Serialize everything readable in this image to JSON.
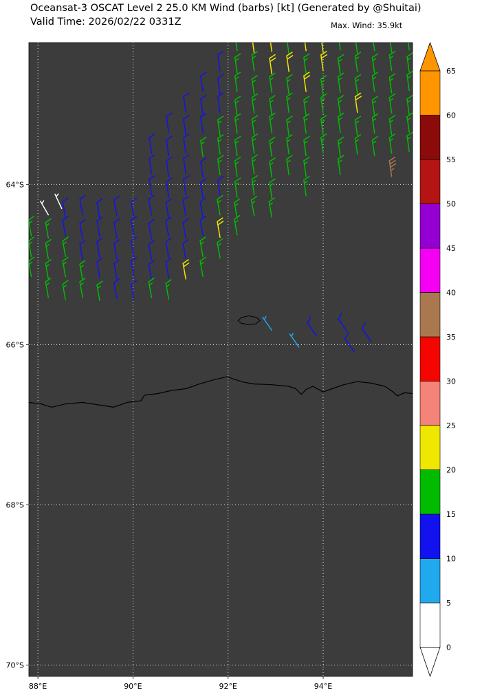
{
  "header": {
    "title": "Oceansat-3 OSCAT Level 2 25.0 KM Wind (barbs) [kt] (Generated by @Shuitai)",
    "valid_time": "Valid Time: 2026/02/22 0331Z",
    "max_wind": "Max. Wind: 35.9kt"
  },
  "chart_data": {
    "type": "scatter",
    "subtype": "wind_barbs",
    "units": "kt",
    "title": "Oceansat-3 OSCAT Level 2 25.0 KM Wind (barbs) [kt] (Generated by @Shuitai)",
    "subtitle": "Valid Time: 2026/02/22 0331Z",
    "annotation": "Max. Wind: 35.9kt",
    "plot_bg": "#3c3c3c",
    "grid": {
      "on": true,
      "style": "dotted",
      "color": "#ffffff"
    },
    "x_axis": {
      "range": [
        87.81,
        95.88
      ],
      "ticks": [
        {
          "label": "88°E",
          "value": 88
        },
        {
          "label": "90°E",
          "value": 90
        },
        {
          "label": "92°E",
          "value": 92
        },
        {
          "label": "94°E",
          "value": 94
        }
      ]
    },
    "y_axis": {
      "range": [
        -70.14,
        -62.23
      ],
      "ticks": [
        {
          "label": "64°S",
          "value": -64
        },
        {
          "label": "66°S",
          "value": -66
        },
        {
          "label": "68°S",
          "value": -68
        },
        {
          "label": "70°S",
          "value": -70
        }
      ]
    },
    "colorbar": {
      "levels": [
        0,
        5,
        10,
        15,
        20,
        25,
        30,
        35,
        40,
        45,
        50,
        55,
        60,
        65
      ],
      "tick_labels": [
        "0",
        "5",
        "10",
        "15",
        "20",
        "25",
        "30",
        "35",
        "40",
        "45",
        "50",
        "55",
        "60",
        "65"
      ],
      "colors": [
        "#ffffff",
        "#21a9ee",
        "#1212ef",
        "#00bb00",
        "#eee800",
        "#f48379",
        "#f50500",
        "#a9784e",
        "#f400f4",
        "#9400d3",
        "#b41414",
        "#8b0a0a",
        "#ff9500"
      ],
      "over_color": "#ff9500",
      "under_color": "#ffffff"
    },
    "barbs": [
      [
        92.19,
        -62.33,
        17,
        -8
      ],
      [
        92.55,
        -62.36,
        22,
        -8
      ],
      [
        92.92,
        -62.34,
        22,
        -8
      ],
      [
        93.28,
        -62.37,
        17,
        -8
      ],
      [
        93.64,
        -62.33,
        22,
        -8
      ],
      [
        94.0,
        -62.35,
        22,
        -8
      ],
      [
        94.36,
        -62.32,
        17,
        -8
      ],
      [
        94.72,
        -62.36,
        17,
        -8
      ],
      [
        95.08,
        -62.33,
        17,
        -8
      ],
      [
        95.44,
        -62.35,
        17,
        -8
      ],
      [
        95.81,
        -62.32,
        17,
        -8
      ],
      [
        91.83,
        -62.58,
        12,
        -8
      ],
      [
        92.19,
        -62.61,
        17,
        -8
      ],
      [
        92.55,
        -62.58,
        17,
        -8
      ],
      [
        92.92,
        -62.62,
        22,
        -8
      ],
      [
        93.28,
        -62.59,
        22,
        -8
      ],
      [
        93.64,
        -62.61,
        17,
        -8
      ],
      [
        94.0,
        -62.58,
        22,
        -8
      ],
      [
        94.36,
        -62.62,
        17,
        -8
      ],
      [
        94.72,
        -62.59,
        17,
        -8
      ],
      [
        95.08,
        -62.61,
        17,
        -8
      ],
      [
        95.44,
        -62.58,
        17,
        -8
      ],
      [
        95.81,
        -62.6,
        17,
        -8
      ],
      [
        91.47,
        -62.84,
        12,
        -8
      ],
      [
        91.83,
        -62.87,
        12,
        -8
      ],
      [
        92.19,
        -62.84,
        17,
        -8
      ],
      [
        92.55,
        -62.88,
        17,
        -8
      ],
      [
        92.92,
        -62.85,
        17,
        -8
      ],
      [
        93.28,
        -62.87,
        17,
        -8
      ],
      [
        93.64,
        -62.84,
        22,
        -8
      ],
      [
        94.0,
        -62.88,
        17,
        -8
      ],
      [
        94.36,
        -62.85,
        17,
        -8
      ],
      [
        94.72,
        -62.87,
        17,
        -8
      ],
      [
        95.08,
        -62.84,
        17,
        -8
      ],
      [
        95.44,
        -62.86,
        17,
        -8
      ],
      [
        95.81,
        -62.83,
        17,
        -8
      ],
      [
        91.11,
        -63.1,
        12,
        -8
      ],
      [
        91.47,
        -63.13,
        12,
        -8
      ],
      [
        91.83,
        -63.1,
        12,
        -8
      ],
      [
        92.19,
        -63.14,
        17,
        -8
      ],
      [
        92.55,
        -63.11,
        17,
        -8
      ],
      [
        92.92,
        -63.13,
        17,
        -8
      ],
      [
        93.28,
        -63.1,
        17,
        -8
      ],
      [
        93.64,
        -63.14,
        17,
        -8
      ],
      [
        94.0,
        -63.11,
        17,
        -8
      ],
      [
        94.36,
        -63.13,
        17,
        -8
      ],
      [
        94.72,
        -63.1,
        22,
        -8
      ],
      [
        95.08,
        -63.14,
        17,
        -8
      ],
      [
        95.44,
        -63.11,
        17,
        -8
      ],
      [
        95.81,
        -63.13,
        17,
        -8
      ],
      [
        90.75,
        -63.35,
        12,
        -8
      ],
      [
        91.11,
        -63.38,
        12,
        -8
      ],
      [
        91.47,
        -63.35,
        12,
        -8
      ],
      [
        91.83,
        -63.39,
        17,
        -8
      ],
      [
        92.19,
        -63.36,
        17,
        -8
      ],
      [
        92.55,
        -63.38,
        17,
        -8
      ],
      [
        92.92,
        -63.35,
        17,
        -8
      ],
      [
        93.28,
        -63.39,
        17,
        -8
      ],
      [
        93.64,
        -63.36,
        17,
        -8
      ],
      [
        94.0,
        -63.38,
        17,
        -8
      ],
      [
        94.36,
        -63.35,
        17,
        -8
      ],
      [
        94.72,
        -63.39,
        17,
        -8
      ],
      [
        95.08,
        -63.36,
        17,
        -8
      ],
      [
        95.44,
        -63.38,
        17,
        -8
      ],
      [
        95.81,
        -63.35,
        17,
        -8
      ],
      [
        90.39,
        -63.61,
        12,
        -8
      ],
      [
        90.75,
        -63.64,
        12,
        -8
      ],
      [
        91.11,
        -63.61,
        12,
        -8
      ],
      [
        91.47,
        -63.65,
        17,
        -8
      ],
      [
        91.83,
        -63.62,
        17,
        -8
      ],
      [
        92.19,
        -63.64,
        17,
        -8
      ],
      [
        92.55,
        -63.61,
        17,
        -8
      ],
      [
        92.92,
        -63.65,
        17,
        -8
      ],
      [
        93.28,
        -63.62,
        17,
        -8
      ],
      [
        93.64,
        -63.64,
        17,
        -8
      ],
      [
        94.0,
        -63.61,
        17,
        -8
      ],
      [
        94.36,
        -63.65,
        17,
        -8
      ],
      [
        94.72,
        -63.62,
        17,
        -8
      ],
      [
        95.08,
        -63.64,
        17,
        -8
      ],
      [
        95.44,
        -63.61,
        17,
        -8
      ],
      [
        95.81,
        -63.59,
        17,
        -8
      ],
      [
        90.39,
        -63.87,
        12,
        -8
      ],
      [
        90.75,
        -63.9,
        12,
        -8
      ],
      [
        91.11,
        -63.87,
        12,
        -8
      ],
      [
        91.47,
        -63.91,
        12,
        -8
      ],
      [
        91.83,
        -63.88,
        17,
        -8
      ],
      [
        92.19,
        -63.9,
        17,
        -8
      ],
      [
        92.55,
        -63.87,
        17,
        -8
      ],
      [
        92.92,
        -63.91,
        17,
        -8
      ],
      [
        93.28,
        -63.88,
        17,
        -8
      ],
      [
        93.64,
        -63.9,
        17,
        -8
      ],
      [
        94.36,
        -63.88,
        17,
        -8
      ],
      [
        95.44,
        -63.9,
        35.9,
        -8
      ],
      [
        90.39,
        -64.13,
        12,
        -8
      ],
      [
        90.75,
        -64.16,
        12,
        -8
      ],
      [
        91.11,
        -64.13,
        12,
        -8
      ],
      [
        91.47,
        -64.17,
        12,
        -8
      ],
      [
        91.83,
        -64.14,
        12,
        -8
      ],
      [
        92.19,
        -64.16,
        17,
        -8
      ],
      [
        92.55,
        -64.13,
        17,
        -8
      ],
      [
        92.92,
        -64.17,
        17,
        -8
      ],
      [
        93.64,
        -64.14,
        17,
        -8
      ],
      [
        88.22,
        -64.38,
        3,
        -30
      ],
      [
        88.5,
        -64.3,
        3,
        -25
      ],
      [
        88.58,
        -64.41,
        12,
        -10
      ],
      [
        88.94,
        -64.38,
        12,
        -10
      ],
      [
        89.3,
        -64.42,
        12,
        -10
      ],
      [
        89.66,
        -64.39,
        12,
        -10
      ],
      [
        90.02,
        -64.41,
        12,
        -10
      ],
      [
        90.39,
        -64.38,
        12,
        -10
      ],
      [
        90.75,
        -64.42,
        12,
        -10
      ],
      [
        91.11,
        -64.39,
        12,
        -10
      ],
      [
        91.47,
        -64.41,
        12,
        -10
      ],
      [
        91.83,
        -64.38,
        17,
        -10
      ],
      [
        92.19,
        -64.42,
        17,
        -10
      ],
      [
        92.55,
        -64.39,
        17,
        -10
      ],
      [
        92.92,
        -64.41,
        17,
        -10
      ],
      [
        87.86,
        -64.64,
        17,
        -10
      ],
      [
        88.22,
        -64.67,
        17,
        -10
      ],
      [
        88.58,
        -64.64,
        12,
        -10
      ],
      [
        88.94,
        -64.68,
        12,
        -10
      ],
      [
        89.3,
        -64.65,
        12,
        -10
      ],
      [
        89.66,
        -64.67,
        12,
        -10
      ],
      [
        90.02,
        -64.64,
        12,
        -10
      ],
      [
        90.39,
        -64.68,
        12,
        -10
      ],
      [
        90.75,
        -64.65,
        12,
        -10
      ],
      [
        91.11,
        -64.67,
        12,
        -10
      ],
      [
        91.47,
        -64.64,
        12,
        -10
      ],
      [
        91.83,
        -64.66,
        22,
        -10
      ],
      [
        92.19,
        -64.63,
        17,
        -10
      ],
      [
        87.86,
        -64.9,
        17,
        -10
      ],
      [
        88.22,
        -64.93,
        17,
        -10
      ],
      [
        88.58,
        -64.9,
        17,
        -10
      ],
      [
        88.94,
        -64.94,
        12,
        -10
      ],
      [
        89.3,
        -64.91,
        12,
        -10
      ],
      [
        89.66,
        -64.93,
        12,
        -10
      ],
      [
        90.02,
        -64.9,
        12,
        -10
      ],
      [
        90.39,
        -64.94,
        12,
        -10
      ],
      [
        90.75,
        -64.91,
        12,
        -10
      ],
      [
        91.11,
        -64.93,
        12,
        -10
      ],
      [
        91.47,
        -64.9,
        17,
        -10
      ],
      [
        91.83,
        -64.92,
        17,
        -10
      ],
      [
        87.86,
        -65.15,
        17,
        -10
      ],
      [
        88.22,
        -65.18,
        17,
        -10
      ],
      [
        88.58,
        -65.15,
        17,
        -10
      ],
      [
        88.94,
        -65.19,
        17,
        -10
      ],
      [
        89.3,
        -65.16,
        12,
        -10
      ],
      [
        89.66,
        -65.18,
        12,
        -10
      ],
      [
        90.02,
        -65.15,
        12,
        -10
      ],
      [
        90.39,
        -65.19,
        12,
        -10
      ],
      [
        90.75,
        -65.16,
        12,
        -10
      ],
      [
        91.11,
        -65.18,
        22,
        -10
      ],
      [
        91.47,
        -65.15,
        17,
        -10
      ],
      [
        88.22,
        -65.41,
        17,
        -10
      ],
      [
        88.58,
        -65.44,
        17,
        -10
      ],
      [
        88.94,
        -65.41,
        17,
        -10
      ],
      [
        89.3,
        -65.45,
        17,
        -10
      ],
      [
        89.66,
        -65.42,
        12,
        -10
      ],
      [
        90.02,
        -65.44,
        12,
        -10
      ],
      [
        90.39,
        -65.41,
        17,
        -10
      ],
      [
        90.75,
        -65.43,
        17,
        -10
      ],
      [
        92.92,
        -65.82,
        7,
        -35
      ],
      [
        93.49,
        -66.03,
        7,
        -35
      ],
      [
        93.86,
        -65.89,
        12,
        -35
      ],
      [
        94.51,
        -65.84,
        12,
        -35
      ],
      [
        94.65,
        -66.09,
        12,
        -35
      ],
      [
        95.01,
        -65.96,
        12,
        -35
      ]
    ],
    "coastline": [
      [
        87.81,
        -66.72
      ],
      [
        88.07,
        -66.74
      ],
      [
        88.29,
        -66.78
      ],
      [
        88.58,
        -66.74
      ],
      [
        88.94,
        -66.72
      ],
      [
        89.37,
        -66.76
      ],
      [
        89.59,
        -66.78
      ],
      [
        89.88,
        -66.72
      ],
      [
        90.17,
        -66.7
      ],
      [
        90.24,
        -66.63
      ],
      [
        90.53,
        -66.61
      ],
      [
        90.82,
        -66.57
      ],
      [
        91.11,
        -66.55
      ],
      [
        91.4,
        -66.49
      ],
      [
        91.69,
        -66.44
      ],
      [
        91.98,
        -66.4
      ],
      [
        92.12,
        -66.43
      ],
      [
        92.34,
        -66.47
      ],
      [
        92.55,
        -66.49
      ],
      [
        92.92,
        -66.5
      ],
      [
        93.28,
        -66.52
      ],
      [
        93.42,
        -66.55
      ],
      [
        93.54,
        -66.62
      ],
      [
        93.64,
        -66.56
      ],
      [
        93.78,
        -66.52
      ],
      [
        94.0,
        -66.59
      ],
      [
        94.14,
        -66.56
      ],
      [
        94.43,
        -66.5
      ],
      [
        94.72,
        -66.46
      ],
      [
        95.01,
        -66.48
      ],
      [
        95.3,
        -66.52
      ],
      [
        95.47,
        -66.59
      ],
      [
        95.56,
        -66.64
      ],
      [
        95.71,
        -66.6
      ],
      [
        95.88,
        -66.61
      ]
    ],
    "island": [
      [
        92.21,
        -65.7
      ],
      [
        92.28,
        -65.66
      ],
      [
        92.44,
        -65.64
      ],
      [
        92.6,
        -65.66
      ],
      [
        92.67,
        -65.7
      ],
      [
        92.58,
        -65.74
      ],
      [
        92.42,
        -65.75
      ],
      [
        92.27,
        -65.73
      ]
    ]
  }
}
